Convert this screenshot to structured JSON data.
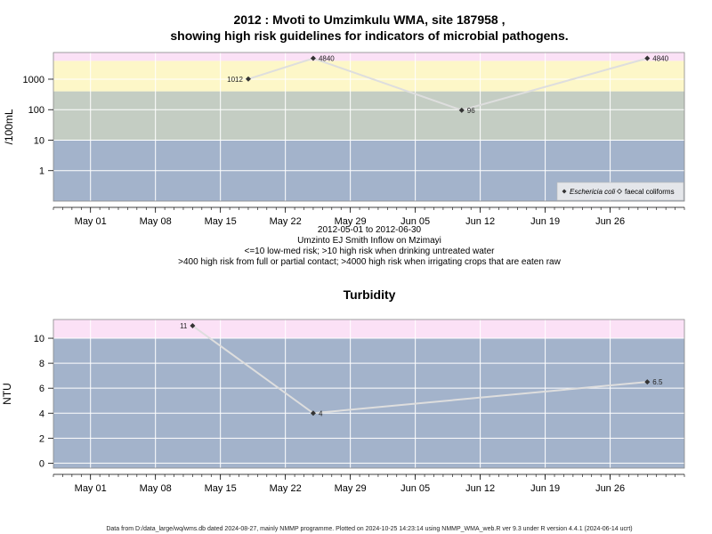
{
  "title_line1": "2012 : Mvoti to Umzimkulu WMA, site 187958 ,",
  "title_line2": "showing high risk guidelines for indicators of microbial pathogens.",
  "captions": [
    "2012-05-01 to 2012-06-30",
    "Umzinto EJ Smith Inflow on Mzimayi",
    "<=10 low-med risk; >10 high risk when drinking untreated water",
    ">400 high risk from full or partial contact; >4000 high risk when irrigating crops that are eaten raw"
  ],
  "footer": "Data from D:/data_large/wq/wms.db dated 2024-08-27, mainly NMMP programme. Plotted on 2024-10-25 14:23:14 using NMMP_WMA_web.R ver 9.3 under R version 4.4.1 (2024-06-14 ucrt)",
  "colors": {
    "band_blue": "#a3b3cb",
    "band_green": "#c4cdc3",
    "band_yellow": "#fdf7c8",
    "band_pink": "#fbe1f6",
    "line": "#dedede",
    "point": "#333333"
  },
  "chart_data": [
    {
      "type": "line",
      "title": "",
      "ylabel": "/100mL",
      "xlabel": "",
      "yscale": "log",
      "ylim": [
        0.1,
        7500
      ],
      "xlim": [
        "2012-04-27",
        "2012-07-04"
      ],
      "grid": true,
      "x_ticks": [
        "2012-05-01",
        "2012-05-08",
        "2012-05-15",
        "2012-05-22",
        "2012-05-29",
        "2012-06-05",
        "2012-06-12",
        "2012-06-19",
        "2012-06-26"
      ],
      "x_tick_labels": [
        "May 01",
        "May 08",
        "May 15",
        "May 22",
        "May 29",
        "Jun 05",
        "Jun 12",
        "Jun 19",
        "Jun 26"
      ],
      "y_ticks": [
        1,
        10,
        100,
        1000
      ],
      "y_tick_labels": [
        "1",
        "10",
        "100",
        "1000"
      ],
      "bands": [
        {
          "from": 0.1,
          "to": 10,
          "color": "#a3b3cb"
        },
        {
          "from": 10,
          "to": 400,
          "color": "#c4cdc3"
        },
        {
          "from": 400,
          "to": 4000,
          "color": "#fdf7c8"
        },
        {
          "from": 4000,
          "to": 7500,
          "color": "#fbe1f6"
        }
      ],
      "series": [
        {
          "name": "Eschericia coli",
          "marker": "filled-diamond",
          "points": [
            {
              "x": "2012-05-18",
              "y": 1012,
              "label": "1012",
              "label_side": "left"
            },
            {
              "x": "2012-05-25",
              "y": 4840,
              "label": "4840",
              "label_side": "right"
            },
            {
              "x": "2012-06-10",
              "y": 96,
              "label": "96",
              "label_side": "right"
            },
            {
              "x": "2012-06-30",
              "y": 4840,
              "label": "4840",
              "label_side": "right"
            }
          ]
        },
        {
          "name": "faecal coliforms",
          "marker": "open-diamond",
          "points": []
        }
      ],
      "legend": "bottom-right"
    },
    {
      "type": "line",
      "title": "Turbidity",
      "ylabel": "NTU",
      "xlabel": "",
      "yscale": "linear",
      "ylim": [
        -0.4,
        11.5
      ],
      "xlim": [
        "2012-04-27",
        "2012-07-04"
      ],
      "grid": true,
      "x_ticks": [
        "2012-05-01",
        "2012-05-08",
        "2012-05-15",
        "2012-05-22",
        "2012-05-29",
        "2012-06-05",
        "2012-06-12",
        "2012-06-19",
        "2012-06-26"
      ],
      "x_tick_labels": [
        "May 01",
        "May 08",
        "May 15",
        "May 22",
        "May 29",
        "Jun 05",
        "Jun 12",
        "Jun 19",
        "Jun 26"
      ],
      "y_ticks": [
        0,
        2,
        4,
        6,
        8,
        10
      ],
      "y_tick_labels": [
        "0",
        "2",
        "4",
        "6",
        "8",
        "10"
      ],
      "bands": [
        {
          "from": -0.4,
          "to": 10,
          "color": "#a3b3cb"
        },
        {
          "from": 10,
          "to": 11.5,
          "color": "#fbe1f6"
        }
      ],
      "series": [
        {
          "name": "",
          "marker": "filled-diamond",
          "points": [
            {
              "x": "2012-05-12",
              "y": 11,
              "label": "11",
              "label_side": "left"
            },
            {
              "x": "2012-05-25",
              "y": 4,
              "label": "4",
              "label_side": "right"
            },
            {
              "x": "2012-06-30",
              "y": 6.5,
              "label": "6.5",
              "label_side": "right"
            }
          ]
        }
      ],
      "legend": "none"
    }
  ]
}
